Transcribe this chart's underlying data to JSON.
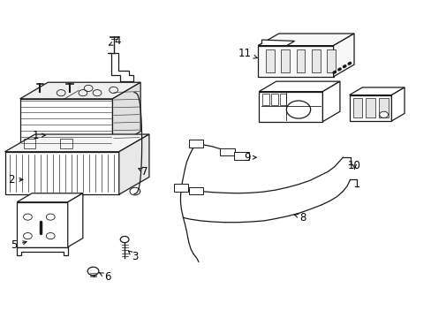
{
  "background_color": "#ffffff",
  "line_color": "#1a1a1a",
  "line_width": 0.9,
  "label_fontsize": 8.5,
  "label_positions": {
    "1": [
      0.085,
      0.575,
      0.115,
      0.575
    ],
    "2": [
      0.028,
      0.435,
      0.065,
      0.435
    ],
    "3": [
      0.31,
      0.195,
      0.295,
      0.215
    ],
    "4": [
      0.27,
      0.87,
      0.248,
      0.858
    ],
    "5": [
      0.035,
      0.23,
      0.072,
      0.245
    ],
    "6": [
      0.248,
      0.128,
      0.228,
      0.142
    ],
    "7": [
      0.338,
      0.462,
      0.322,
      0.475
    ],
    "8": [
      0.7,
      0.318,
      0.672,
      0.332
    ],
    "9": [
      0.575,
      0.508,
      0.605,
      0.508
    ],
    "10": [
      0.82,
      0.482,
      0.82,
      0.462
    ],
    "11": [
      0.57,
      0.832,
      0.6,
      0.82
    ]
  }
}
